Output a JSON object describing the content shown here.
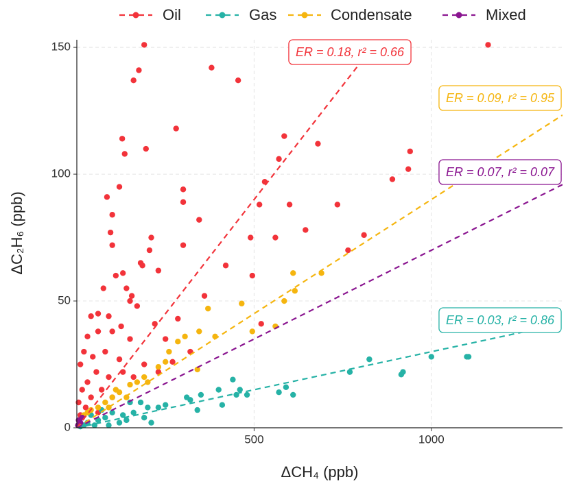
{
  "chart_data": {
    "type": "scatter",
    "x_label": "ΔCH₄ (ppb)",
    "y_label": "ΔC₂H₆ (ppb)",
    "xlim": [
      0,
      1370
    ],
    "ylim": [
      0,
      153
    ],
    "xticks": [
      500,
      1000
    ],
    "yticks": [
      0,
      50,
      100,
      150
    ],
    "grid": true,
    "legend": "top",
    "series": [
      {
        "name": "Oil",
        "color": "#F2333A",
        "slope": 0.18,
        "annotation": "ER = 0.18, r² = 0.66",
        "x": [
          190,
          1160,
          380,
          175,
          160,
          455,
          280,
          128,
          585,
          135,
          195,
          680,
          940,
          935,
          890,
          570,
          300,
          120,
          85,
          300,
          530,
          600,
          515,
          735,
          100,
          345,
          95,
          210,
          490,
          560,
          645,
          810,
          765,
          300,
          205,
          100,
          180,
          130,
          110,
          420,
          185,
          230,
          495,
          140,
          155,
          150,
          75,
          360,
          60,
          170,
          90,
          40,
          125,
          220,
          520,
          285,
          60,
          30,
          100,
          150,
          250,
          80,
          20,
          45,
          120,
          190,
          320,
          10,
          55,
          90,
          30,
          15,
          70,
          5,
          40,
          100,
          25,
          60,
          10,
          130,
          230,
          270,
          160
        ],
        "y": [
          151,
          151,
          142,
          141,
          137,
          137,
          118,
          114,
          115,
          108,
          110,
          112,
          109,
          102,
          98,
          106,
          94,
          95,
          91,
          89,
          97,
          88,
          88,
          88,
          84,
          82,
          77,
          75,
          75,
          75,
          78,
          76,
          70,
          72,
          70,
          72,
          65,
          61,
          60,
          64,
          64,
          62,
          60,
          55,
          52,
          50,
          55,
          52,
          45,
          48,
          44,
          44,
          40,
          41,
          41,
          43,
          38,
          36,
          38,
          35,
          35,
          30,
          30,
          28,
          27,
          25,
          30,
          25,
          22,
          20,
          18,
          15,
          15,
          10,
          12,
          12,
          8,
          6,
          5,
          22,
          22,
          26,
          20
        ]
      },
      {
        "name": "Gas",
        "color": "#26B2A6",
        "slope": 0.03,
        "annotation": "ER = 0.03, r² = 0.86",
        "x": [
          1100,
          1000,
          1105,
          825,
          920,
          915,
          770,
          590,
          610,
          570,
          440,
          460,
          450,
          400,
          480,
          350,
          310,
          320,
          340,
          410,
          250,
          230,
          200,
          180,
          150,
          160,
          130,
          100,
          80,
          60,
          40,
          30,
          20,
          10,
          120,
          90,
          70,
          140,
          190,
          210,
          50
        ],
        "y": [
          28,
          28,
          28,
          27,
          22,
          21,
          22,
          16,
          13,
          14,
          19,
          15,
          13,
          15,
          13,
          13,
          12,
          11,
          7,
          9,
          9,
          8,
          8,
          10,
          10,
          6,
          5,
          6,
          4,
          3,
          5,
          2,
          1,
          0.5,
          2,
          1,
          7,
          3,
          4,
          2,
          1
        ]
      },
      {
        "name": "Condensate",
        "color": "#F5B50F",
        "slope": 0.09,
        "annotation": "ER = 0.09, r² = 0.95",
        "x": [
          690,
          610,
          615,
          585,
          465,
          370,
          495,
          560,
          345,
          390,
          305,
          285,
          260,
          340,
          250,
          190,
          200,
          170,
          150,
          120,
          100,
          80,
          60,
          40,
          30,
          20,
          110,
          140,
          230,
          90
        ],
        "y": [
          61,
          61,
          54,
          50,
          49,
          47,
          38,
          40,
          38,
          36,
          36,
          34,
          30,
          23,
          26,
          20,
          18,
          18,
          17,
          14,
          12,
          10,
          8,
          7,
          6,
          5,
          15,
          12,
          24,
          8
        ]
      },
      {
        "name": "Mixed",
        "color": "#8A1590",
        "slope": 0.07,
        "annotation": "ER = 0.07, r² = 0.07",
        "x": [
          5,
          10,
          15,
          3
        ],
        "y": [
          3,
          2,
          4,
          1
        ]
      }
    ]
  }
}
